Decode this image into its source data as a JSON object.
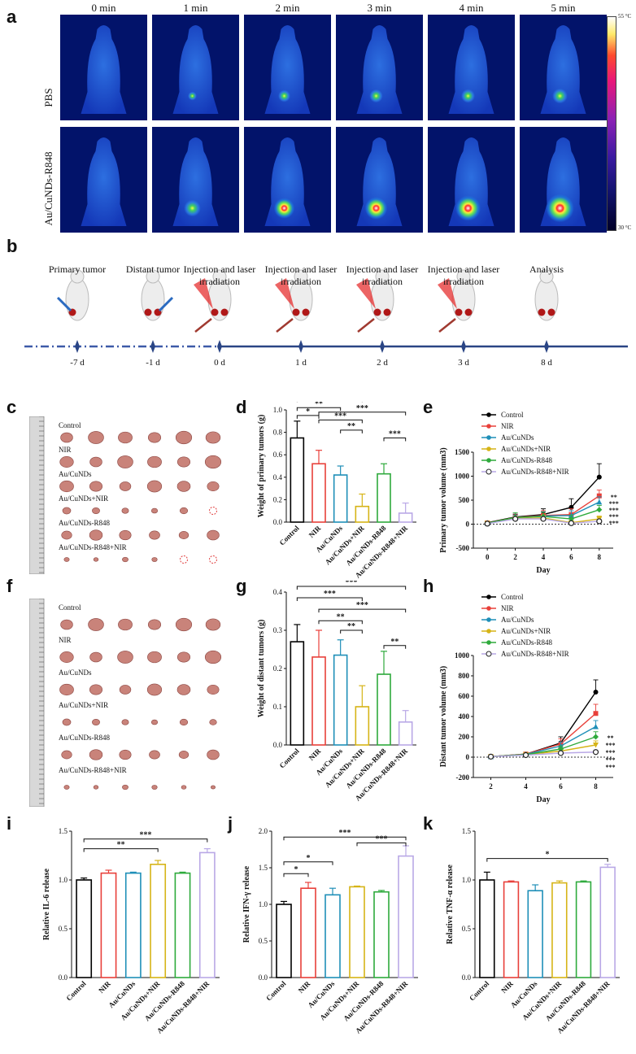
{
  "panels": {
    "a": "a",
    "b": "b",
    "c": "c",
    "d": "d",
    "e": "e",
    "f": "f",
    "g": "g",
    "h": "h",
    "i": "i",
    "j": "j",
    "k": "k"
  },
  "thermal": {
    "times": [
      "0 min",
      "1 min",
      "2 min",
      "3 min",
      "4 min",
      "5 min"
    ],
    "rows": [
      "PBS",
      "Au/CuNDs-R848"
    ],
    "colorbar_max": "55 °C",
    "colorbar_min": "30 °C",
    "hotspot_intensity": [
      [
        0,
        0.1,
        0.25,
        0.3,
        0.32,
        0.38
      ],
      [
        0,
        0.45,
        0.62,
        0.7,
        0.82,
        0.95
      ]
    ]
  },
  "timeline": {
    "events": [
      "Primary tumor",
      "Distant tumor",
      "Injection and laser irradiation",
      "Injection and laser irradiation",
      "Injection and laser irradiation",
      "Injection and laser irradiation",
      "Analysis"
    ],
    "days": [
      "-7 d",
      "-1 d",
      "0 d",
      "1 d",
      "2 d",
      "3 d",
      "8 d"
    ]
  },
  "tumor_photos": {
    "primary_groups": [
      "Control",
      "NIR",
      "Au/CuNDs",
      "Au/CuNDs+NIR",
      "Au/CuNDs-R848",
      "Au/CuNDs-R848+NIR"
    ],
    "distant_groups": [
      "Control",
      "NIR",
      "Au/CuNDs",
      "Au/CuNDs+NIR",
      "Au/CuNDs-R848",
      "Au/CuNDs-R848+NIR"
    ]
  },
  "groups": [
    "Control",
    "NIR",
    "Au/CuNDs",
    "Au/CuNDs+NIR",
    "Au/CuNDs-R848",
    "Au/CuNDs-R848+NIR"
  ],
  "group_colors": [
    "#000000",
    "#e8403a",
    "#1f8fb8",
    "#d6b417",
    "#2eaa3c",
    "#b9a8e6"
  ],
  "chart_data": [
    {
      "panel": "d",
      "type": "bar",
      "categories": [
        "Control",
        "NIR",
        "Au/CuNDs",
        "Au/CuNDs+NIR",
        "Au/CuNDs-R848",
        "Au/CuNDs-R848+NIR"
      ],
      "values": [
        0.75,
        0.52,
        0.42,
        0.14,
        0.43,
        0.08
      ],
      "errors": [
        0.15,
        0.12,
        0.08,
        0.11,
        0.09,
        0.09
      ],
      "ylabel": "Weight of primary tumors (g)",
      "ylim": [
        0,
        1.0
      ],
      "yticks": [
        "0.0",
        "0.2",
        "0.4",
        "0.6",
        "0.8",
        "1.0"
      ],
      "significance": [
        {
          "from": 0,
          "to": 1,
          "label": "*"
        },
        {
          "from": 0,
          "to": 2,
          "label": "**"
        },
        {
          "from": 0,
          "to": 3,
          "label": "***"
        },
        {
          "from": 0,
          "to": 4,
          "label": "**"
        },
        {
          "from": 0,
          "to": 5,
          "label": "***"
        },
        {
          "from": 1,
          "to": 3,
          "label": "***"
        },
        {
          "from": 1,
          "to": 5,
          "label": "***"
        },
        {
          "from": 2,
          "to": 3,
          "label": "**"
        },
        {
          "from": 4,
          "to": 5,
          "label": "***"
        }
      ]
    },
    {
      "panel": "e",
      "type": "line",
      "x": [
        0,
        2,
        4,
        6,
        8
      ],
      "series": [
        {
          "name": "Control",
          "values": [
            30,
            150,
            200,
            350,
            980
          ],
          "errors": [
            20,
            60,
            120,
            180,
            280
          ]
        },
        {
          "name": "NIR",
          "values": [
            25,
            140,
            180,
            200,
            590
          ],
          "errors": [
            20,
            60,
            100,
            120,
            120
          ]
        },
        {
          "name": "Au/CuNDs",
          "values": [
            20,
            130,
            170,
            180,
            460
          ],
          "errors": [
            20,
            60,
            90,
            100,
            110
          ]
        },
        {
          "name": "Au/CuNDs+NIR",
          "values": [
            20,
            120,
            130,
            30,
            110
          ],
          "errors": [
            20,
            50,
            60,
            40,
            60
          ]
        },
        {
          "name": "Au/CuNDs-R848",
          "values": [
            20,
            140,
            160,
            110,
            300
          ],
          "errors": [
            20,
            100,
            90,
            80,
            90
          ]
        },
        {
          "name": "Au/CuNDs-R848+NIR",
          "values": [
            10,
            110,
            110,
            20,
            60
          ],
          "errors": [
            10,
            50,
            50,
            20,
            40
          ]
        }
      ],
      "significance": [
        "**",
        "***",
        "***",
        "***",
        "***"
      ],
      "xlabel": "Day",
      "ylabel": "Primary tumor volume (mm3)",
      "xlim": [
        -1,
        9
      ],
      "ylim": [
        -500,
        1500
      ],
      "xticks": [
        "0",
        "2",
        "4",
        "6",
        "8"
      ],
      "yticks": [
        "-500",
        "0",
        "500",
        "1000",
        "1500"
      ]
    },
    {
      "panel": "g",
      "type": "bar",
      "categories": [
        "Control",
        "NIR",
        "Au/CuNDs",
        "Au/CuNDs+NIR",
        "Au/CuNDs-R848",
        "Au/CuNDs-R848+NIR"
      ],
      "values": [
        0.27,
        0.23,
        0.235,
        0.1,
        0.185,
        0.06
      ],
      "errors": [
        0.045,
        0.07,
        0.04,
        0.055,
        0.06,
        0.03
      ],
      "ylabel": "Weight of distant tumors (g)",
      "ylim": [
        0,
        0.4
      ],
      "yticks": [
        "0.0",
        "0.1",
        "0.2",
        "0.3",
        "0.4"
      ],
      "significance": [
        {
          "from": 0,
          "to": 3,
          "label": "***"
        },
        {
          "from": 0,
          "to": 5,
          "label": "***"
        },
        {
          "from": 1,
          "to": 3,
          "label": "**"
        },
        {
          "from": 1,
          "to": 5,
          "label": "***"
        },
        {
          "from": 2,
          "to": 3,
          "label": "**"
        },
        {
          "from": 4,
          "to": 5,
          "label": "**"
        }
      ]
    },
    {
      "panel": "h",
      "type": "line",
      "x": [
        2,
        4,
        6,
        8
      ],
      "series": [
        {
          "name": "Control",
          "values": [
            5,
            30,
            140,
            640
          ],
          "errors": [
            5,
            15,
            60,
            120
          ]
        },
        {
          "name": "NIR",
          "values": [
            5,
            30,
            130,
            430
          ],
          "errors": [
            5,
            15,
            50,
            90
          ]
        },
        {
          "name": "Au/CuNDs",
          "values": [
            5,
            28,
            110,
            300
          ],
          "errors": [
            5,
            15,
            40,
            60
          ]
        },
        {
          "name": "Au/CuNDs+NIR",
          "values": [
            5,
            25,
            60,
            120
          ],
          "errors": [
            5,
            10,
            30,
            40
          ]
        },
        {
          "name": "Au/CuNDs-R848",
          "values": [
            5,
            25,
            80,
            200
          ],
          "errors": [
            5,
            10,
            30,
            50
          ]
        },
        {
          "name": "Au/CuNDs-R848+NIR",
          "values": [
            5,
            20,
            40,
            50
          ],
          "errors": [
            5,
            10,
            20,
            20
          ]
        }
      ],
      "significance": [
        "**",
        "***",
        "***",
        "***",
        "***"
      ],
      "xlabel": "Day",
      "ylabel": "Distant tumor volume (mm3)",
      "xlim": [
        1,
        9
      ],
      "ylim": [
        -200,
        1000
      ],
      "xticks": [
        "2",
        "4",
        "6",
        "8"
      ],
      "yticks": [
        "-200",
        "0",
        "200",
        "400",
        "600",
        "800",
        "1000"
      ]
    },
    {
      "panel": "i",
      "type": "bar",
      "categories": [
        "Control",
        "NIR",
        "Au/CuNDs",
        "Au/CuNDs+NIR",
        "Au/CuNDs-R848",
        "Au/CuNDs-R848+NIR"
      ],
      "values": [
        1.0,
        1.07,
        1.07,
        1.16,
        1.07,
        1.28
      ],
      "errors": [
        0.02,
        0.03,
        0.01,
        0.04,
        0.01,
        0.04
      ],
      "ylabel": "Relative IL-6 release",
      "ylim": [
        0,
        1.5
      ],
      "yticks": [
        "0.0",
        "0.5",
        "1.0",
        "1.5"
      ],
      "significance": [
        {
          "from": 0,
          "to": 3,
          "label": "**"
        },
        {
          "from": 0,
          "to": 5,
          "label": "***"
        }
      ]
    },
    {
      "panel": "j",
      "type": "bar",
      "categories": [
        "Control",
        "NIR",
        "Au/CuNDs",
        "Au/CuNDs+NIR",
        "Au/CuNDs-R848",
        "Au/CuNDs-R848+NIR"
      ],
      "values": [
        1.0,
        1.22,
        1.13,
        1.24,
        1.17,
        1.66
      ],
      "errors": [
        0.04,
        0.08,
        0.09,
        0.01,
        0.02,
        0.14
      ],
      "ylabel": "Relative IFN-γ release",
      "ylim": [
        0,
        2.0
      ],
      "yticks": [
        "0.0",
        "0.5",
        "1.0",
        "1.5",
        "2.0"
      ],
      "significance": [
        {
          "from": 0,
          "to": 1,
          "label": "*"
        },
        {
          "from": 0,
          "to": 2,
          "label": "*"
        },
        {
          "from": 0,
          "to": 5,
          "label": "***"
        },
        {
          "from": 3,
          "to": 5,
          "label": "***"
        }
      ]
    },
    {
      "panel": "k",
      "type": "bar",
      "categories": [
        "Control",
        "NIR",
        "Au/CuNDs",
        "Au/CuNDs+NIR",
        "Au/CuNDs-R848",
        "Au/CuNDs-R848+NIR"
      ],
      "values": [
        1.0,
        0.98,
        0.89,
        0.97,
        0.98,
        1.13
      ],
      "errors": [
        0.08,
        0.01,
        0.06,
        0.02,
        0.01,
        0.03
      ],
      "ylabel": "Relative TNF-α release",
      "ylim": [
        0,
        1.5
      ],
      "yticks": [
        "0.0",
        "0.5",
        "1.0",
        "1.5"
      ],
      "significance": [
        {
          "from": 0,
          "to": 5,
          "label": "*"
        }
      ]
    }
  ]
}
